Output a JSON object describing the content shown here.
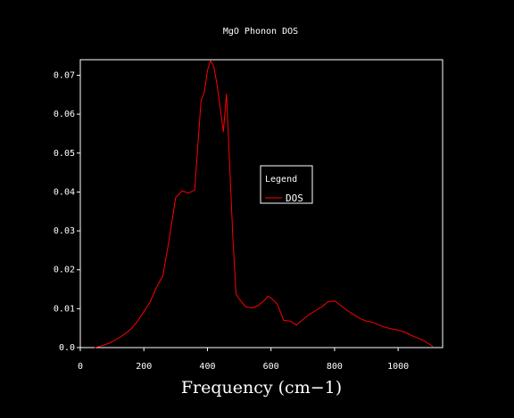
{
  "chart_data": {
    "type": "line",
    "title": "MgO Phonon DOS",
    "xlabel": "Frequency (cm−1)",
    "ylabel": "",
    "xlim": [
      0,
      1140
    ],
    "ylim": [
      0,
      0.074
    ],
    "x_ticks": [
      0,
      200,
      400,
      600,
      800,
      1000
    ],
    "x_tick_labels": [
      "0",
      "200",
      "400",
      "600",
      "800",
      "1000"
    ],
    "y_ticks": [
      0,
      0.01,
      0.02,
      0.03,
      0.04,
      0.05,
      0.06,
      0.07
    ],
    "y_tick_labels": [
      "0.0",
      "0.01",
      "0.02",
      "0.03",
      "0.04",
      "0.05",
      "0.06",
      "0.07"
    ],
    "grid": false,
    "legend": {
      "title": "Legend",
      "placement": "center-right"
    },
    "series": [
      {
        "name": "DOS",
        "color": "#ff0000",
        "x": [
          45,
          60,
          80,
          100,
          120,
          140,
          160,
          180,
          200,
          220,
          240,
          260,
          280,
          300,
          320,
          340,
          360,
          380,
          390,
          400,
          410,
          420,
          430,
          440,
          450,
          460,
          470,
          480,
          490,
          500,
          520,
          540,
          560,
          580,
          590,
          600,
          620,
          640,
          660,
          680,
          700,
          720,
          740,
          760,
          780,
          800,
          820,
          840,
          860,
          880,
          900,
          920,
          940,
          960,
          980,
          1000,
          1020,
          1040,
          1060,
          1080,
          1100,
          1110
        ],
        "y": [
          0.0,
          0.0003,
          0.0008,
          0.0015,
          0.0024,
          0.0035,
          0.0048,
          0.0068,
          0.0092,
          0.0118,
          0.0155,
          0.0185,
          0.028,
          0.0385,
          0.0403,
          0.0397,
          0.0405,
          0.0635,
          0.0655,
          0.0712,
          0.0738,
          0.0722,
          0.0678,
          0.0618,
          0.0555,
          0.0652,
          0.0468,
          0.0285,
          0.0138,
          0.0125,
          0.0105,
          0.0102,
          0.0108,
          0.0122,
          0.0132,
          0.0128,
          0.0112,
          0.007,
          0.0068,
          0.0058,
          0.0072,
          0.0085,
          0.0095,
          0.0105,
          0.0118,
          0.012,
          0.0108,
          0.0095,
          0.0085,
          0.0075,
          0.0068,
          0.0065,
          0.0058,
          0.0052,
          0.0048,
          0.0045,
          0.004,
          0.0032,
          0.0025,
          0.0018,
          0.0008,
          0.0003
        ]
      }
    ]
  }
}
